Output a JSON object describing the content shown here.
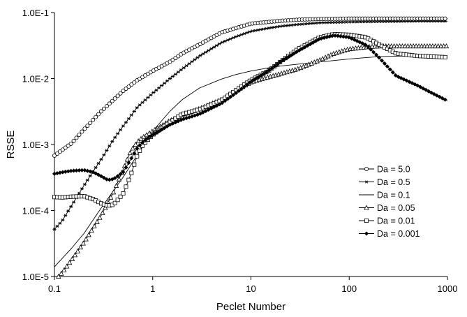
{
  "chart_data": {
    "type": "scatter",
    "title": "",
    "xlabel": "Peclet Number",
    "ylabel": "RSSE",
    "x_scale": "log",
    "y_scale": "log",
    "xlim": [
      0.1,
      1000
    ],
    "ylim": [
      1e-05,
      0.1
    ],
    "grid": false,
    "legend_position": "right",
    "x_ticks": [
      {
        "value": 0.1,
        "label": "0.1"
      },
      {
        "value": 1,
        "label": "1"
      },
      {
        "value": 10,
        "label": "10"
      },
      {
        "value": 100,
        "label": "100"
      },
      {
        "value": 1000,
        "label": "1000"
      }
    ],
    "y_ticks": [
      {
        "value": 1e-05,
        "label": "1.0E-5"
      },
      {
        "value": 0.0001,
        "label": "1.0E-4"
      },
      {
        "value": 0.001,
        "label": "1.0E-3"
      },
      {
        "value": 0.01,
        "label": "1.0E-2"
      },
      {
        "value": 0.1,
        "label": "1.0E-1"
      }
    ],
    "series": [
      {
        "name": "Da = 5.0",
        "marker": "circle",
        "color": "#000000",
        "points": [
          [
            0.1,
            0.00068
          ],
          [
            0.15,
            0.00105
          ],
          [
            0.2,
            0.0017
          ],
          [
            0.3,
            0.0032
          ],
          [
            0.5,
            0.0065
          ],
          [
            0.7,
            0.0095
          ],
          [
            1,
            0.013
          ],
          [
            1.5,
            0.018
          ],
          [
            2,
            0.024
          ],
          [
            3,
            0.033
          ],
          [
            5,
            0.05
          ],
          [
            7,
            0.058
          ],
          [
            10,
            0.068
          ],
          [
            15,
            0.072
          ],
          [
            20,
            0.075
          ],
          [
            30,
            0.078
          ],
          [
            50,
            0.08
          ],
          [
            100,
            0.081
          ],
          [
            200,
            0.081
          ],
          [
            500,
            0.081
          ],
          [
            1000,
            0.081
          ]
        ]
      },
      {
        "name": "Da = 0.5",
        "marker": "star",
        "color": "#000000",
        "points": [
          [
            0.1,
            5.2e-05
          ],
          [
            0.12,
            7e-05
          ],
          [
            0.15,
            0.00012
          ],
          [
            0.2,
            0.00024
          ],
          [
            0.25,
            0.0004
          ],
          [
            0.3,
            0.0006
          ],
          [
            0.4,
            0.0012
          ],
          [
            0.5,
            0.0019
          ],
          [
            0.7,
            0.0037
          ],
          [
            1,
            0.006
          ],
          [
            1.5,
            0.01
          ],
          [
            2,
            0.014
          ],
          [
            3,
            0.022
          ],
          [
            5,
            0.035
          ],
          [
            7,
            0.043
          ],
          [
            10,
            0.052
          ],
          [
            15,
            0.058
          ],
          [
            20,
            0.062
          ],
          [
            30,
            0.066
          ],
          [
            50,
            0.07
          ],
          [
            100,
            0.072
          ],
          [
            200,
            0.073
          ],
          [
            500,
            0.074
          ],
          [
            1000,
            0.074
          ]
        ]
      },
      {
        "name": "Da = 0.1",
        "marker": "none",
        "color": "#000000",
        "points": [
          [
            0.1,
            1.4e-05
          ],
          [
            0.15,
            2.7e-05
          ],
          [
            0.2,
            4.5e-05
          ],
          [
            0.3,
            0.00011
          ],
          [
            0.5,
            0.00032
          ],
          [
            0.7,
            0.0007
          ],
          [
            1,
            0.0016
          ],
          [
            1.5,
            0.0032
          ],
          [
            2,
            0.0048
          ],
          [
            3,
            0.0072
          ],
          [
            5,
            0.0098
          ],
          [
            7,
            0.0115
          ],
          [
            10,
            0.013
          ],
          [
            15,
            0.0145
          ],
          [
            20,
            0.0155
          ],
          [
            30,
            0.0165
          ],
          [
            50,
            0.0178
          ],
          [
            100,
            0.0198
          ],
          [
            200,
            0.0215
          ],
          [
            500,
            0.0222
          ],
          [
            1000,
            0.0222
          ]
        ]
      },
      {
        "name": "Da = 0.05",
        "marker": "triangle",
        "color": "#000000",
        "points": [
          [
            0.11,
            1e-05
          ],
          [
            0.12,
            1.15e-05
          ],
          [
            0.15,
            1.8e-05
          ],
          [
            0.2,
            3.3e-05
          ],
          [
            0.3,
            8.5e-05
          ],
          [
            0.4,
            0.00019
          ],
          [
            0.5,
            0.00042
          ],
          [
            0.6,
            0.0008
          ],
          [
            0.7,
            0.0011
          ],
          [
            0.8,
            0.0013
          ],
          [
            1,
            0.0016
          ],
          [
            1.5,
            0.0023
          ],
          [
            2,
            0.0028
          ],
          [
            3,
            0.0035
          ],
          [
            5,
            0.0048
          ],
          [
            7,
            0.0065
          ],
          [
            10,
            0.0088
          ],
          [
            15,
            0.0105
          ],
          [
            20,
            0.0118
          ],
          [
            30,
            0.014
          ],
          [
            50,
            0.019
          ],
          [
            70,
            0.024
          ],
          [
            100,
            0.028
          ],
          [
            150,
            0.03
          ],
          [
            200,
            0.031
          ],
          [
            500,
            0.031
          ],
          [
            1000,
            0.031
          ]
        ]
      },
      {
        "name": "Da = 0.01",
        "marker": "square",
        "color": "#000000",
        "points": [
          [
            0.1,
            0.00016
          ],
          [
            0.12,
            0.000158
          ],
          [
            0.15,
            0.000162
          ],
          [
            0.2,
            0.000165
          ],
          [
            0.25,
            0.000148
          ],
          [
            0.3,
            0.000128
          ],
          [
            0.35,
            0.000118
          ],
          [
            0.4,
            0.000123
          ],
          [
            0.5,
            0.00018
          ],
          [
            0.6,
            0.00035
          ],
          [
            0.7,
            0.0007
          ],
          [
            0.8,
            0.001
          ],
          [
            1,
            0.0014
          ],
          [
            1.5,
            0.0022
          ],
          [
            2,
            0.0029
          ],
          [
            3,
            0.0034
          ],
          [
            5,
            0.0047
          ],
          [
            7,
            0.0066
          ],
          [
            10,
            0.0095
          ],
          [
            15,
            0.013
          ],
          [
            20,
            0.018
          ],
          [
            30,
            0.028
          ],
          [
            50,
            0.042
          ],
          [
            70,
            0.047
          ],
          [
            100,
            0.046
          ],
          [
            150,
            0.042
          ],
          [
            200,
            0.033
          ],
          [
            300,
            0.024
          ],
          [
            500,
            0.022
          ],
          [
            1000,
            0.021
          ]
        ]
      },
      {
        "name": "Da = 0.001",
        "marker": "diamond",
        "color": "#000000",
        "points": [
          [
            0.1,
            0.00036
          ],
          [
            0.12,
            0.00038
          ],
          [
            0.15,
            0.0004
          ],
          [
            0.2,
            0.00041
          ],
          [
            0.25,
            0.00038
          ],
          [
            0.3,
            0.00033
          ],
          [
            0.35,
            0.00029
          ],
          [
            0.4,
            0.0003
          ],
          [
            0.5,
            0.00038
          ],
          [
            0.6,
            0.0006
          ],
          [
            0.7,
            0.0009
          ],
          [
            0.8,
            0.0011
          ],
          [
            1,
            0.0014
          ],
          [
            1.5,
            0.002
          ],
          [
            2,
            0.0024
          ],
          [
            3,
            0.0029
          ],
          [
            5,
            0.0042
          ],
          [
            7,
            0.006
          ],
          [
            10,
            0.009
          ],
          [
            15,
            0.013
          ],
          [
            20,
            0.018
          ],
          [
            30,
            0.026
          ],
          [
            50,
            0.04
          ],
          [
            70,
            0.045
          ],
          [
            100,
            0.042
          ],
          [
            150,
            0.032
          ],
          [
            200,
            0.021
          ],
          [
            300,
            0.011
          ],
          [
            500,
            0.0078
          ],
          [
            700,
            0.006
          ],
          [
            1000,
            0.0046
          ]
        ]
      }
    ]
  }
}
